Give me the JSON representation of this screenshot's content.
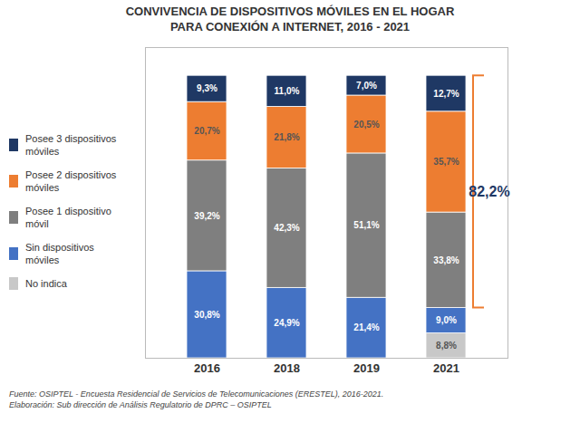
{
  "chart_data": {
    "type": "bar",
    "stacked": true,
    "title": "CONVIVENCIA DE DISPOSITIVOS MÓVILES EN EL HOGAR",
    "subtitle": "PARA CONEXIÓN A INTERNET, 2016 - 2021",
    "categories": [
      "2016",
      "2018",
      "2019",
      "2021"
    ],
    "series": [
      {
        "name": "No indica",
        "color": "#c8c8c8",
        "values": [
          0.0,
          0.0,
          0.0,
          8.8
        ],
        "value_labels": [
          null,
          null,
          null,
          "8,8%"
        ]
      },
      {
        "name": "Sin dispositivos\nmóviles",
        "color": "#4472c4",
        "values": [
          30.8,
          24.9,
          21.4,
          9.0
        ],
        "value_labels": [
          "30,8%",
          "24,9%",
          "21,4%",
          "9,0%"
        ]
      },
      {
        "name": "Posee 1 dispositivo\nmóvil",
        "color": "#7f7f7f",
        "values": [
          39.2,
          42.3,
          51.1,
          33.8
        ],
        "value_labels": [
          "39,2%",
          "42,3%",
          "51,1%",
          "33,8%"
        ]
      },
      {
        "name": "Posee 2 dispositivos\nmóviles",
        "color": "#ed7d31",
        "values": [
          20.7,
          21.8,
          20.5,
          35.7
        ],
        "value_labels": [
          "20,7%",
          "21,8%",
          "20,5%",
          "35,7%"
        ]
      },
      {
        "name": "Posee 3 dispositivos\nmóviles",
        "color": "#1f3864",
        "values": [
          9.3,
          11.0,
          7.0,
          12.7
        ],
        "value_labels": [
          "9,3%",
          "11,0%",
          "7,0%",
          "12,7%"
        ]
      }
    ],
    "ylim": [
      0,
      110
    ],
    "tick_labels": "x",
    "grid": false,
    "legend": "left",
    "data_labels": true,
    "annotations": [
      {
        "text": "82,2%",
        "category": "2021",
        "span": [
          "Posee 1 dispositivo\nmóvil",
          "Posee 2 dispositivos\nmóviles",
          "Posee 3 dispositivos\nmóviles"
        ],
        "colors": [
          "#ed7d31",
          "#1f3864"
        ]
      }
    ],
    "caption": [
      "Fuente: OSIPTEL - Encuesta Residencial de Servicios de Telecomunicaciones (ERESTEL), 2016-2021.",
      "Elaboración: Sub dirección de Análisis Regulatorio de DPRC – OSIPTEL"
    ]
  }
}
